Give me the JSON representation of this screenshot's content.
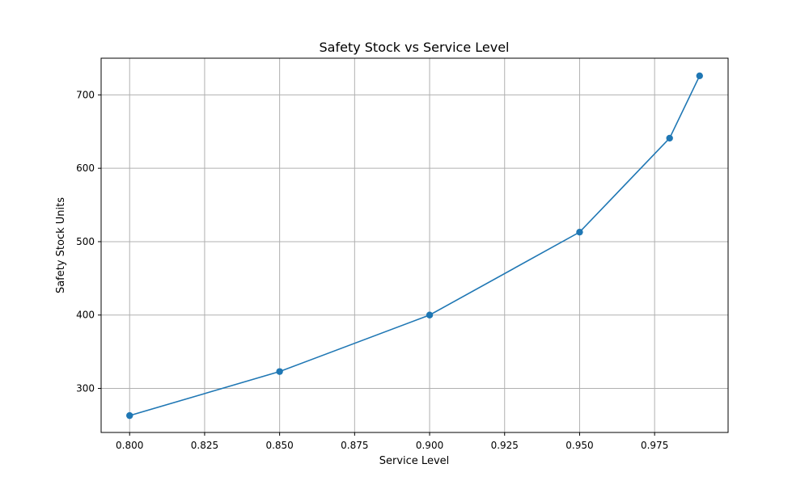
{
  "chart_data": {
    "type": "line",
    "title": "Safety Stock vs Service Level",
    "xlabel": "Service Level",
    "ylabel": "Safety Stock Units",
    "xlim": [
      0.7905,
      0.9995
    ],
    "ylim": [
      240,
      750
    ],
    "x_ticks": [
      0.8,
      0.825,
      0.85,
      0.875,
      0.9,
      0.925,
      0.95,
      0.975
    ],
    "x_tick_labels": [
      "0.800",
      "0.825",
      "0.850",
      "0.875",
      "0.900",
      "0.925",
      "0.950",
      "0.975"
    ],
    "y_ticks": [
      300,
      400,
      500,
      600,
      700
    ],
    "y_tick_labels": [
      "300",
      "400",
      "500",
      "600",
      "700"
    ],
    "grid": true,
    "series": [
      {
        "color": "#1f77b4",
        "marker": "circle",
        "x": [
          0.8,
          0.85,
          0.9,
          0.95,
          0.98,
          0.99
        ],
        "y": [
          263,
          323,
          400,
          513,
          641,
          726
        ]
      }
    ]
  }
}
